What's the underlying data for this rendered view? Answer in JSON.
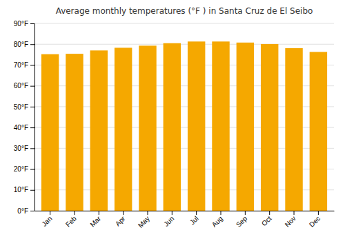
{
  "chart_data": {
    "type": "bar",
    "title": "Average monthly temperatures (°F ) in Santa Cruz de El Seibo",
    "categories": [
      "Jan",
      "Feb",
      "Mar",
      "Apr",
      "May",
      "Jun",
      "Jul",
      "Aug",
      "Sep",
      "Oct",
      "Nov",
      "Dec"
    ],
    "values": [
      75.2,
      75.4,
      77.0,
      78.3,
      79.3,
      80.5,
      81.3,
      81.3,
      80.8,
      80.1,
      78.1,
      76.3
    ],
    "color": "#F5A800",
    "ylim": [
      0,
      90
    ],
    "yticks": [
      {
        "value": 0,
        "label": "0°F"
      },
      {
        "value": 10,
        "label": "10°F"
      },
      {
        "value": 20,
        "label": "20°F"
      },
      {
        "value": 30,
        "label": "30°F"
      },
      {
        "value": 40,
        "label": "40°F"
      },
      {
        "value": 50,
        "label": "50°F"
      },
      {
        "value": 60,
        "label": "60°F"
      },
      {
        "value": 70,
        "label": "70°F"
      },
      {
        "value": 80,
        "label": "80°F"
      },
      {
        "value": 90,
        "label": "90°F"
      }
    ],
    "grid": true
  }
}
